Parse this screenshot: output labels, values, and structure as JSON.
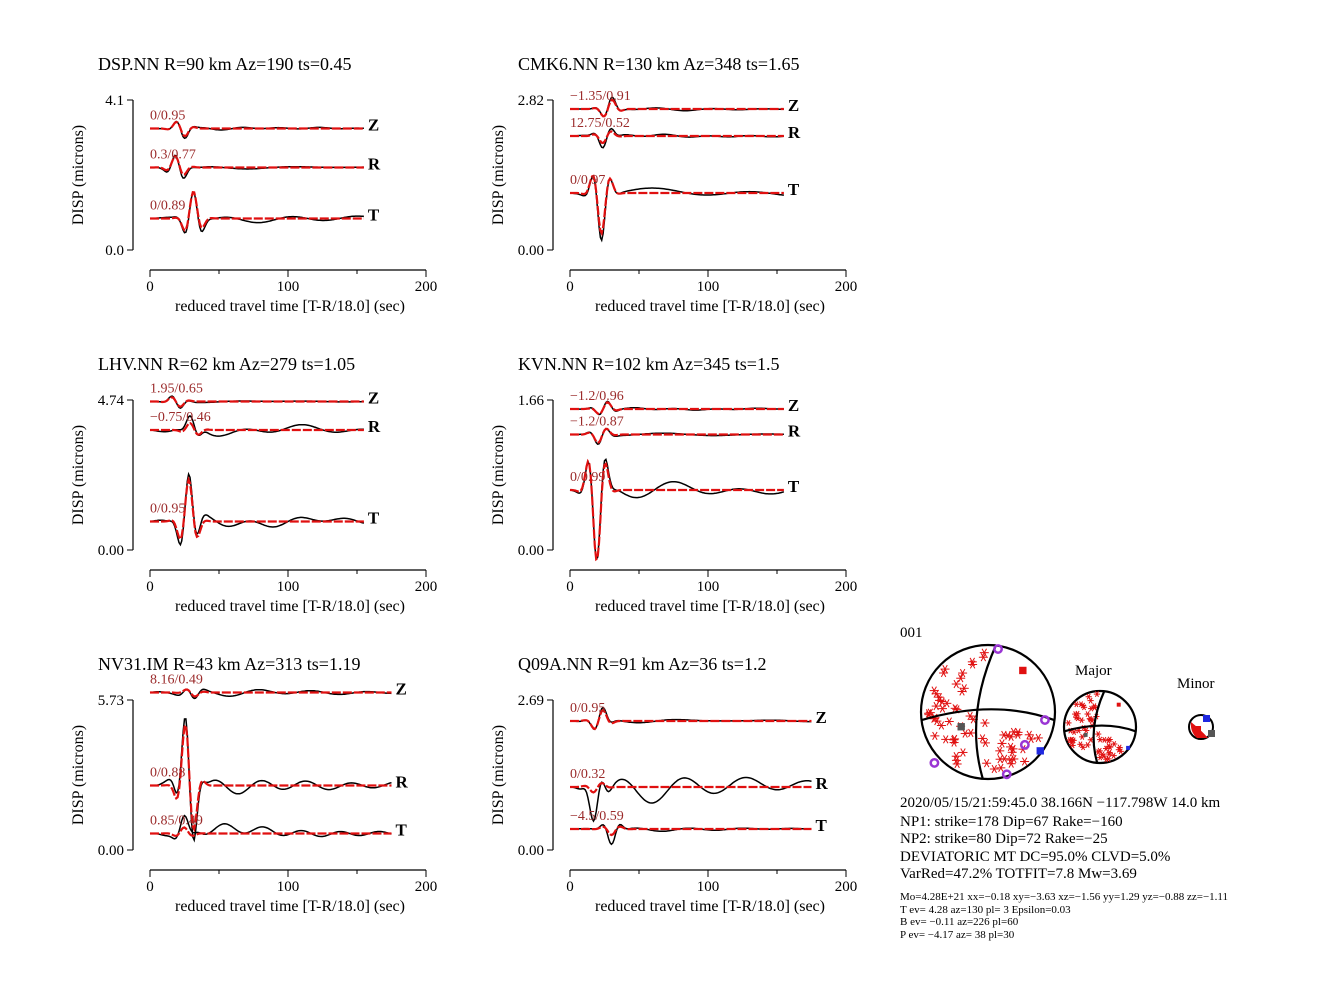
{
  "chart_data": [
    {
      "type": "line",
      "title": "DSP.NN R=90 km Az=190 ts=0.45",
      "xlabel": "reduced travel time [T-R/18.0] (sec)",
      "ylabel": "DISP (microns)",
      "xlim": [
        0,
        200
      ],
      "xticks": [
        "0",
        "100",
        "200"
      ],
      "ytop_label": "4.1",
      "ybottom_label": "0.0",
      "traces": [
        {
          "component": "Z",
          "fit": "0/0.95",
          "offset": 0.81,
          "seed": 1,
          "amp": 0.07,
          "red_amp": 0.06
        },
        {
          "component": "R",
          "fit": "0.3/0.77",
          "offset": 0.55,
          "seed": 2,
          "amp": 0.1,
          "red_amp": 0.08
        },
        {
          "component": "T",
          "fit": "0/0.89",
          "offset": 0.21,
          "seed": 3,
          "amp": 0.2,
          "red_amp": 0.18
        }
      ]
    },
    {
      "type": "line",
      "title": "CMK6.NN R=130 km Az=348 ts=1.65",
      "xlabel": "reduced travel time [T-R/18.0] (sec)",
      "ylabel": "DISP (microns)",
      "xlim": [
        0,
        200
      ],
      "xticks": [
        "0",
        "100",
        "200"
      ],
      "ytop_label": "2.82",
      "ybottom_label": "0.00",
      "traces": [
        {
          "component": "Z",
          "fit": "−1.35/0.91",
          "offset": 0.94,
          "seed": 4,
          "amp": 0.08,
          "red_amp": 0.07
        },
        {
          "component": "R",
          "fit": "12.75/0.52",
          "offset": 0.76,
          "seed": 5,
          "amp": 0.08,
          "red_amp": 0.05
        },
        {
          "component": "T",
          "fit": "0/0.97",
          "offset": 0.38,
          "seed": 6,
          "amp": 0.3,
          "red_amp": 0.27
        }
      ]
    },
    {
      "type": "line",
      "title": "LHV.NN R=62 km Az=279 ts=1.05",
      "xlabel": "reduced travel time [T-R/18.0] (sec)",
      "ylabel": "DISP (microns)",
      "xlim": [
        0,
        200
      ],
      "xticks": [
        "0",
        "100",
        "200"
      ],
      "ytop_label": "4.74",
      "ybottom_label": "0.00",
      "traces": [
        {
          "component": "Z",
          "fit": "1.95/0.65",
          "offset": 0.99,
          "seed": 7,
          "amp": 0.05,
          "red_amp": 0.04
        },
        {
          "component": "R",
          "fit": "−0.75/0.46",
          "offset": 0.8,
          "seed": 8,
          "amp": 0.07,
          "red_amp": 0.05
        },
        {
          "component": "T",
          "fit": "0/0.95",
          "offset": 0.19,
          "seed": 9,
          "amp": 0.32,
          "red_amp": 0.28
        }
      ]
    },
    {
      "type": "line",
      "title": "KVN.NN R=102 km Az=345 ts=1.5",
      "xlabel": "reduced travel time [T-R/18.0] (sec)",
      "ylabel": "DISP (microns)",
      "xlim": [
        0,
        200
      ],
      "xticks": [
        "0",
        "100",
        "200"
      ],
      "ytop_label": "1.66",
      "ybottom_label": "0.00",
      "traces": [
        {
          "component": "Z",
          "fit": "−1.2/0.96",
          "offset": 0.94,
          "seed": 10,
          "amp": 0.06,
          "red_amp": 0.05
        },
        {
          "component": "R",
          "fit": "−1.2/0.87",
          "offset": 0.77,
          "seed": 11,
          "amp": 0.07,
          "red_amp": 0.06
        },
        {
          "component": "T",
          "fit": "0/0.99",
          "offset": 0.4,
          "seed": 12,
          "amp": 0.48,
          "red_amp": 0.47
        }
      ]
    },
    {
      "type": "line",
      "title": "NV31.IM R=43 km Az=313 ts=1.19",
      "xlabel": "reduced travel time [T-R/18.0] (sec)",
      "ylabel": "DISP (microns)",
      "xlim": [
        0,
        200
      ],
      "xticks": [
        "0",
        "100",
        "200"
      ],
      "ytop_label": "5.73",
      "ybottom_label": "0.00",
      "traces": [
        {
          "component": "Z",
          "fit": "8.16/0.49",
          "offset": 1.05,
          "seed": 13,
          "amp": 0.05,
          "red_amp": 0.03
        },
        {
          "component": "R",
          "fit": "0/0.88",
          "offset": 0.43,
          "seed": 14,
          "amp": 0.5,
          "red_amp": 0.45
        },
        {
          "component": "T",
          "fit": "0.85/0.49",
          "offset": 0.11,
          "seed": 15,
          "amp": 0.08,
          "red_amp": 0.04
        }
      ]
    },
    {
      "type": "line",
      "title": "Q09A.NN R=91 km Az=36 ts=1.2",
      "xlabel": "reduced travel time [T-R/18.0] (sec)",
      "ylabel": "DISP (microns)",
      "xlim": [
        0,
        200
      ],
      "xticks": [
        "0",
        "100",
        "200"
      ],
      "ytop_label": "2.69",
      "ybottom_label": "0.00",
      "traces": [
        {
          "component": "Z",
          "fit": "0/0.95",
          "offset": 0.86,
          "seed": 16,
          "amp": 0.09,
          "red_amp": 0.08
        },
        {
          "component": "R",
          "fit": "0/0.32",
          "offset": 0.42,
          "seed": 17,
          "amp": 0.16,
          "red_amp": 0.04
        },
        {
          "component": "T",
          "fit": "−4.5/0.59",
          "offset": 0.14,
          "seed": 18,
          "amp": 0.09,
          "red_amp": 0.04
        }
      ]
    }
  ],
  "mechanism": {
    "event_id": "001",
    "major_label": "Major",
    "minor_label": "Minor",
    "colors": {
      "compression": "#e01010",
      "t_axis": "#e01010",
      "p_axis": "#1f28e0",
      "b_axis": "#555555",
      "station": "#9a35d4",
      "line": "#000000"
    }
  },
  "summary": {
    "line1": "2020/05/15/21:59:45.0 38.166N −117.798W 14.0 km",
    "line2": "NP1: strike=178 Dip=67 Rake=−160",
    "line3": "NP2: strike=80 Dip=72 Rake=−25",
    "line4": "DEVIATORIC MT DC=95.0% CLVD=5.0%",
    "line5": "VarRed=47.2% TOTFIT=7.8 Mw=3.69"
  },
  "details": {
    "line1": "Mo=4.28E+21 xx=−0.18 xy=−3.63 xz=−1.56 yy=1.29 yz=−0.88 zz=−1.11",
    "line2": "T ev=  4.28 az=130 pl= 3 Epsilon=0.03",
    "line3": "B ev= −0.11 az=226 pl=60",
    "line4": "P ev= −4.17 az= 38 pl=30"
  },
  "colors": {
    "observed": "#000000",
    "synthetic": "#e01010",
    "fit_text": "#9b2b2b"
  }
}
